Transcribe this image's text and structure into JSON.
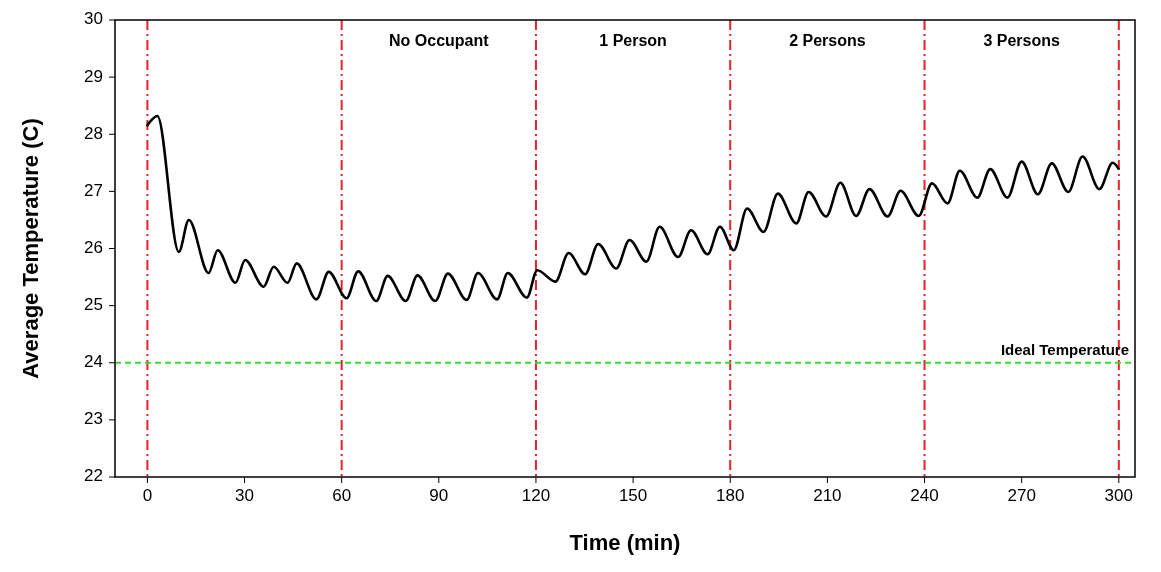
{
  "chart_data": {
    "type": "line",
    "xlabel": "Time (min)",
    "ylabel": "Average Temperature (C)",
    "xlim": [
      -10,
      305
    ],
    "ylim": [
      22,
      30
    ],
    "xticks": [
      0,
      30,
      60,
      90,
      120,
      150,
      180,
      210,
      240,
      270,
      300
    ],
    "yticks": [
      22,
      23,
      24,
      25,
      26,
      27,
      28,
      29,
      30
    ],
    "grid": false,
    "marker": "none",
    "series": [
      {
        "color": "#000000",
        "line_style": "solid",
        "x": [
          0,
          3.1,
          9.7,
          12.8,
          18.9,
          21.7,
          27.2,
          30.2,
          35.9,
          39.0,
          43.3,
          46.1,
          52.2,
          56.0,
          61.5,
          65.1,
          70.7,
          74.2,
          79.8,
          83.4,
          88.9,
          92.8,
          98.6,
          102.1,
          108.0,
          111.3,
          117.2,
          120.4,
          126.0,
          130.1,
          135.2,
          139.2,
          144.8,
          148.9,
          154.1,
          158.2,
          163.9,
          167.9,
          173.0,
          176.8,
          181.1,
          185.2,
          190.3,
          194.7,
          200.4,
          204.2,
          209.6,
          214.0,
          218.9,
          223.0,
          228.6,
          232.6,
          238.2,
          242.3,
          247.1,
          250.9,
          256.3,
          260.3,
          265.6,
          270.0,
          275.0,
          279.3,
          284.4,
          288.8,
          294.0,
          298.1,
          299.9
        ],
        "values": [
          28.16,
          28.32,
          25.94,
          26.5,
          25.57,
          25.97,
          25.4,
          25.8,
          25.33,
          25.68,
          25.4,
          25.74,
          25.11,
          25.59,
          25.13,
          25.6,
          25.08,
          25.52,
          25.08,
          25.53,
          25.08,
          25.56,
          25.1,
          25.57,
          25.11,
          25.57,
          25.14,
          25.62,
          25.42,
          25.92,
          25.55,
          26.08,
          25.65,
          26.15,
          25.77,
          26.38,
          25.85,
          26.32,
          25.9,
          26.38,
          25.97,
          26.7,
          26.29,
          26.96,
          26.44,
          26.99,
          26.56,
          27.15,
          26.57,
          27.04,
          26.56,
          27.01,
          26.57,
          27.14,
          26.79,
          27.36,
          26.89,
          27.39,
          26.89,
          27.52,
          26.95,
          27.49,
          26.99,
          27.61,
          27.04,
          27.5,
          27.4
        ]
      }
    ],
    "ref_lines": [
      {
        "axis": "x",
        "value": 0,
        "color": "#e8202a",
        "line_style": "dashdot"
      },
      {
        "axis": "x",
        "value": 60,
        "color": "#e8202a",
        "line_style": "dashdot"
      },
      {
        "axis": "x",
        "value": 120,
        "color": "#e8202a",
        "line_style": "dashdot"
      },
      {
        "axis": "x",
        "value": 180,
        "color": "#e8202a",
        "line_style": "dashdot"
      },
      {
        "axis": "x",
        "value": 240,
        "color": "#e8202a",
        "line_style": "dashdot"
      },
      {
        "axis": "x",
        "value": 300,
        "color": "#e8202a",
        "line_style": "dashdot"
      },
      {
        "axis": "y",
        "value": 24,
        "label": "Ideal Temperature",
        "color": "#33dd33",
        "line_style": "dashed"
      }
    ],
    "annotations": [
      "No Occupant",
      "1 Person",
      "2 Persons",
      "3 Persons"
    ]
  }
}
